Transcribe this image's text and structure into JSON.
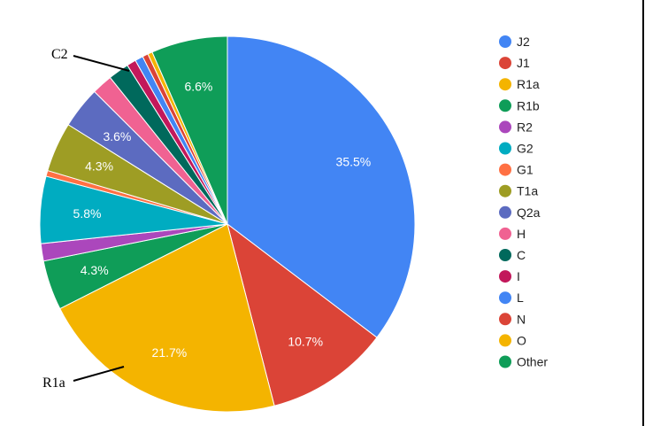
{
  "chart_data": {
    "type": "pie",
    "title": "",
    "legend_position": "right",
    "slices": [
      {
        "name": "J2",
        "value": 35.5,
        "label": "35.5%",
        "color": "#4285F4"
      },
      {
        "name": "J1",
        "value": 10.7,
        "label": "10.7%",
        "color": "#DB4437"
      },
      {
        "name": "R1a",
        "value": 21.7,
        "label": "21.7%",
        "color": "#F4B400"
      },
      {
        "name": "R1b",
        "value": 4.3,
        "label": "4.3%",
        "color": "#0F9D58"
      },
      {
        "name": "R2",
        "value": 1.5,
        "label": "",
        "color": "#AB47BC"
      },
      {
        "name": "G2",
        "value": 5.8,
        "label": "5.8%",
        "color": "#00ACC1"
      },
      {
        "name": "G1",
        "value": 0.5,
        "label": "",
        "color": "#FF7043"
      },
      {
        "name": "T1a",
        "value": 4.3,
        "label": "4.3%",
        "color": "#9E9D24"
      },
      {
        "name": "Q2a",
        "value": 3.6,
        "label": "3.6%",
        "color": "#5C6BC0"
      },
      {
        "name": "H",
        "value": 1.8,
        "label": "",
        "color": "#F06292"
      },
      {
        "name": "C",
        "value": 1.8,
        "label": "",
        "color": "#00695C"
      },
      {
        "name": "I",
        "value": 0.8,
        "label": "",
        "color": "#C2185B"
      },
      {
        "name": "L",
        "value": 0.7,
        "label": "",
        "color": "#4285F4"
      },
      {
        "name": "N",
        "value": 0.5,
        "label": "",
        "color": "#DB4437"
      },
      {
        "name": "O",
        "value": 0.4,
        "label": "",
        "color": "#F4B400"
      },
      {
        "name": "Other",
        "value": 6.6,
        "label": "6.6%",
        "color": "#0F9D58"
      }
    ],
    "annotations": [
      {
        "text": "C2",
        "target": "C"
      },
      {
        "text": "R1a",
        "target": "R1a"
      }
    ]
  }
}
